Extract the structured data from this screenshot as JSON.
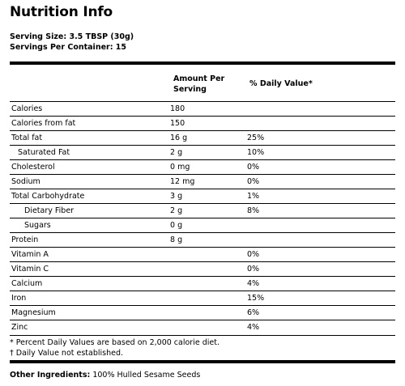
{
  "title": "Nutrition Info",
  "serving_size": "Serving Size: 3.5 TBSP (30g)",
  "servings_per_container": "Servings Per Container: 15",
  "headers": {
    "amount_line1": "Amount Per",
    "amount_line2": "Serving",
    "daily_value": "% Daily Value*"
  },
  "rows": [
    {
      "name": "Calories",
      "amount": "180",
      "dv": "",
      "indent": 0
    },
    {
      "name": "Calories from fat",
      "amount": "150",
      "dv": "",
      "indent": 0
    },
    {
      "name": "Total fat",
      "amount": "16 g",
      "dv": "25%",
      "indent": 0
    },
    {
      "name": "Saturated Fat",
      "amount": "2 g",
      "dv": "10%",
      "indent": 1
    },
    {
      "name": "Cholesterol",
      "amount": "0 mg",
      "dv": "0%",
      "indent": 0
    },
    {
      "name": "Sodium",
      "amount": "12 mg",
      "dv": "0%",
      "indent": 0
    },
    {
      "name": "Total Carbohydrate",
      "amount": "3 g",
      "dv": "1%",
      "indent": 0
    },
    {
      "name": "Dietary Fiber",
      "amount": "2 g",
      "dv": "8%",
      "indent": 2
    },
    {
      "name": "Sugars",
      "amount": "0 g",
      "dv": "",
      "indent": 2
    },
    {
      "name": "Protein",
      "amount": "8 g",
      "dv": "",
      "indent": 0
    },
    {
      "name": "Vitamin A",
      "amount": "",
      "dv": "0%",
      "indent": 0
    },
    {
      "name": "Vitamin C",
      "amount": "",
      "dv": "0%",
      "indent": 0
    },
    {
      "name": "Calcium",
      "amount": "",
      "dv": "4%",
      "indent": 0
    },
    {
      "name": "Iron",
      "amount": "",
      "dv": "15%",
      "indent": 0
    },
    {
      "name": "Magnesium",
      "amount": "",
      "dv": "6%",
      "indent": 0
    },
    {
      "name": "Zinc",
      "amount": "",
      "dv": "4%",
      "indent": 0
    }
  ],
  "footnotes": [
    "* Percent Daily Values are based on 2,000 calorie diet.",
    "† Daily Value not established."
  ],
  "other_ingredients": {
    "label": "Other Ingredients:",
    "value": " 100% Hulled Sesame Seeds"
  }
}
